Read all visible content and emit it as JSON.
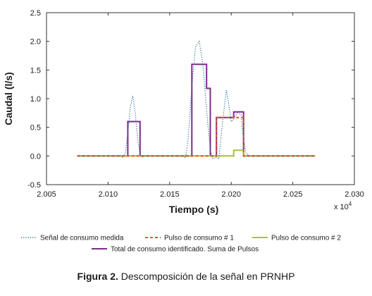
{
  "chart_data": {
    "type": "line",
    "xlabel": "Tiempo (s)",
    "ylabel": "Caudal (l/s)",
    "xlim": [
      20050,
      20300
    ],
    "ylim": [
      -0.5,
      2.5
    ],
    "x_ticks": [
      20050,
      20100,
      20150,
      20200,
      20250,
      20300
    ],
    "x_tick_labels": [
      "2.005",
      "2.010",
      "2.015",
      "2.020",
      "2.025",
      "2.030"
    ],
    "x_multiplier_base": "x 10",
    "x_multiplier_exp": "4",
    "y_ticks": [
      -0.5,
      0,
      0.5,
      1,
      1.5,
      2,
      2.5
    ],
    "y_tick_labels": [
      "-0.5",
      "0.0",
      "0.5",
      "1.0",
      "1.5",
      "2.0",
      "2.5"
    ],
    "grid": false,
    "legend_placement": "bottom",
    "series": [
      {
        "name": "Señal de consumo medida",
        "style": "dotted",
        "color": "#2f6f9f",
        "x": [
          20075,
          20110,
          20112,
          20114,
          20116,
          20118,
          20120,
          20122,
          20124,
          20126,
          20128,
          20130,
          20135,
          20160,
          20163,
          20165,
          20168,
          20171,
          20174,
          20177,
          20180,
          20183,
          20185,
          20188,
          20190,
          20193,
          20196,
          20198,
          20200,
          20202,
          20205,
          20208,
          20210,
          20212,
          20215,
          20220,
          20240,
          20268
        ],
        "y": [
          0,
          0,
          -0.03,
          0.05,
          0.4,
          0.85,
          1.05,
          0.75,
          0.3,
          0.02,
          -0.02,
          0,
          0,
          0,
          -0.03,
          0.3,
          1.2,
          1.9,
          2.0,
          1.6,
          0.8,
          0.1,
          -0.05,
          -0.02,
          -0.05,
          0.6,
          1.15,
          0.9,
          0.6,
          0.65,
          0.75,
          0.72,
          0.3,
          0.05,
          0,
          0,
          0,
          0
        ]
      },
      {
        "name": "Pulso de consumo # 1",
        "style": "dashed",
        "color": "#e0522b",
        "x": [
          20075,
          20188,
          20188,
          20210,
          20210,
          20268
        ],
        "y": [
          0,
          0,
          0.67,
          0.67,
          0,
          0
        ]
      },
      {
        "name": "Pulso de consumo # 2",
        "style": "solid",
        "color": "#a9c13c",
        "x": [
          20075,
          20202,
          20202,
          20210,
          20210,
          20268
        ],
        "y": [
          0,
          0,
          0.1,
          0.1,
          0,
          0
        ]
      },
      {
        "name": "Total de consumo identificado. Suma de Pulsos",
        "style": "solid",
        "color": "#7e2a8a",
        "x": [
          20075,
          20116,
          20116,
          20126,
          20126,
          20168,
          20168,
          20180,
          20180,
          20183,
          20183,
          20188,
          20188,
          20202,
          20202,
          20210,
          20210,
          20268
        ],
        "y": [
          0,
          0,
          0.6,
          0.6,
          0,
          0,
          1.6,
          1.6,
          1.18,
          1.18,
          0,
          0,
          0.67,
          0.67,
          0.77,
          0.77,
          0,
          0
        ]
      }
    ]
  },
  "caption": {
    "label": "Figura 2.",
    "text": "Descomposición de la señal en PRNHP"
  }
}
